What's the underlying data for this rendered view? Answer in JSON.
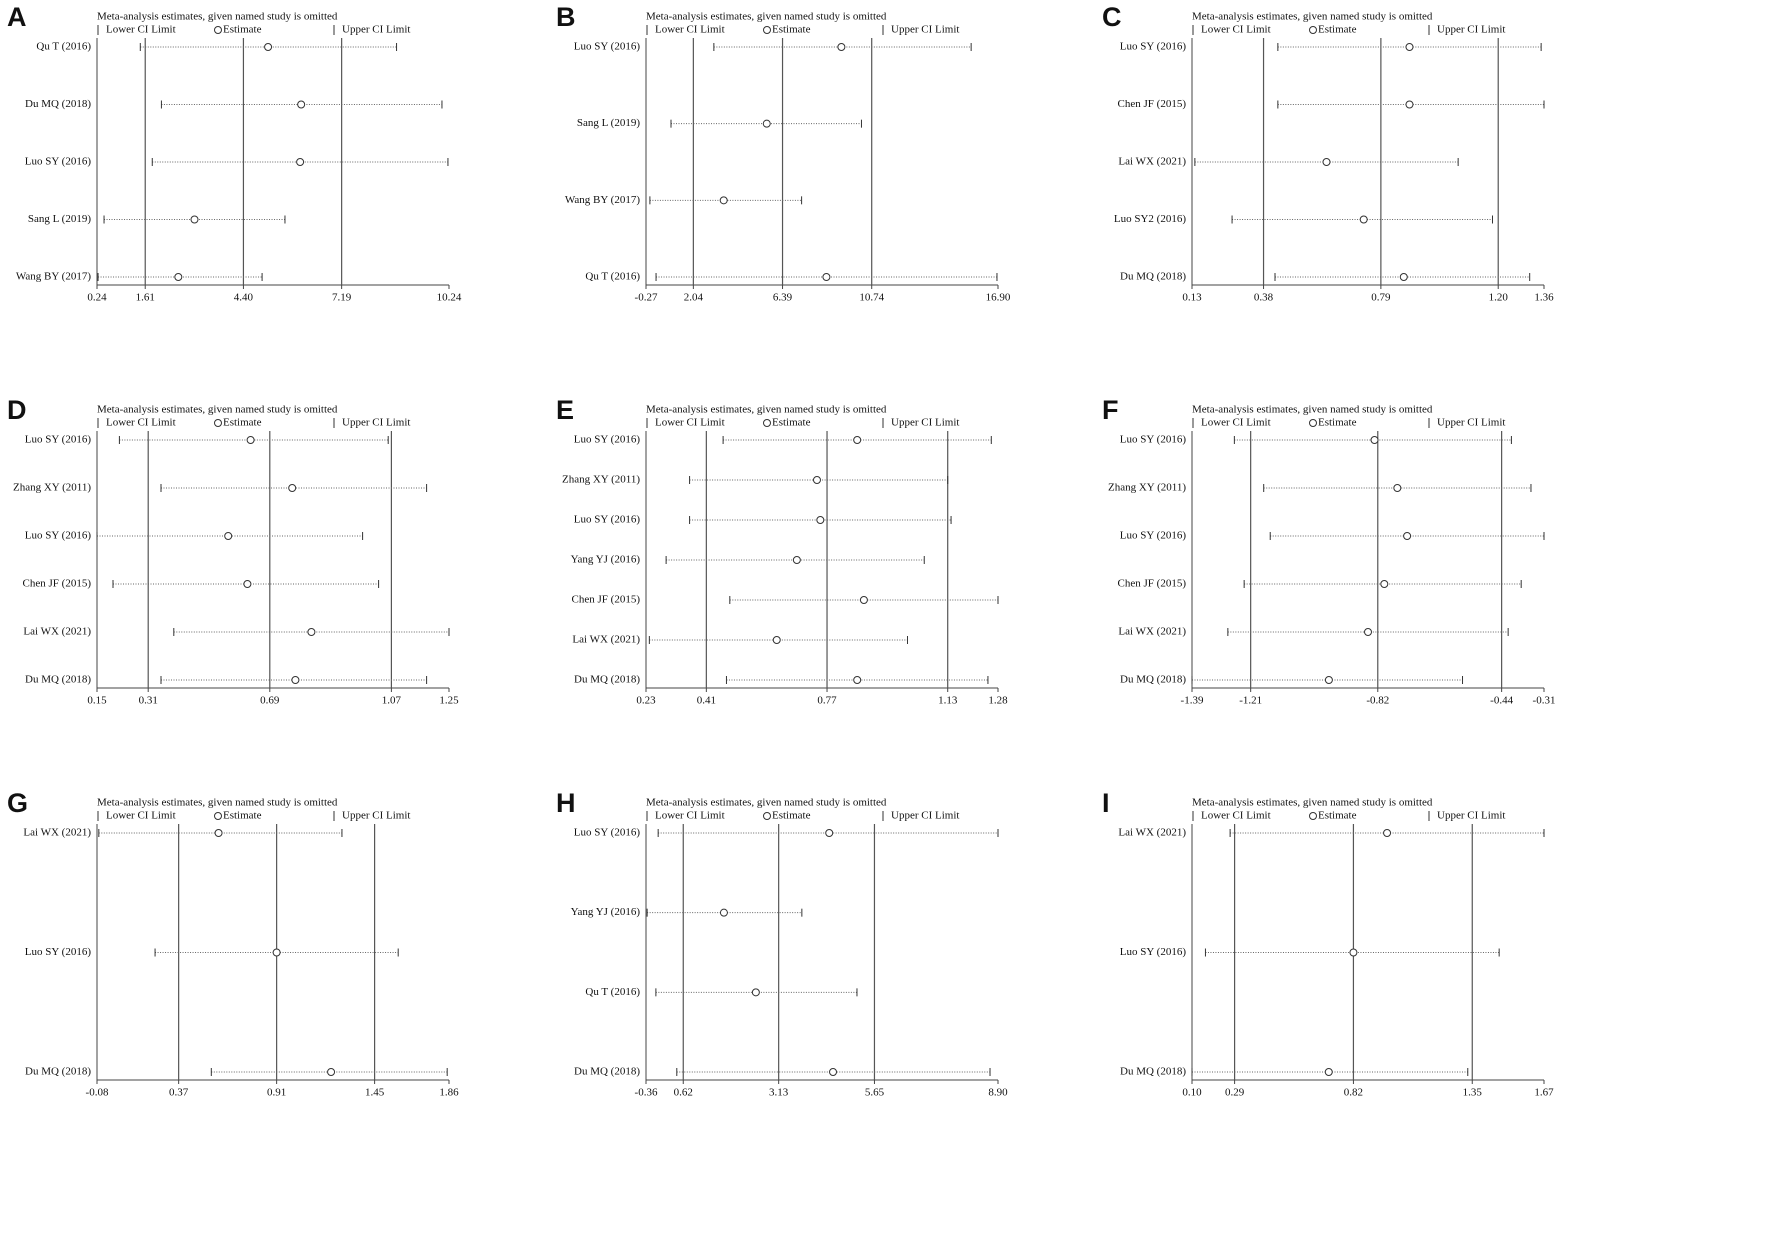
{
  "chart_data": [
    {
      "type": "sensitivity",
      "panel": "A",
      "title": "Meta-analysis estimates, given named study is omitted",
      "categories": [
        "Qu T (2016)",
        "Du MQ (2018)",
        "Luo SY (2016)",
        "Sang L (2019)",
        "Wang BY (2017)"
      ],
      "series": [
        {
          "name": "Lower CI Limit",
          "values": [
            1.47,
            2.07,
            1.81,
            0.44,
            0.27
          ]
        },
        {
          "name": "Estimate",
          "values": [
            5.1,
            6.04,
            6.01,
            3.01,
            2.55
          ]
        },
        {
          "name": "Upper CI Limit",
          "values": [
            8.75,
            10.04,
            10.21,
            5.58,
            4.93
          ]
        }
      ],
      "xlim": [
        0.24,
        10.24
      ],
      "xticks": [
        0.24,
        1.61,
        {
          "value": 4.4,
          "label": "4.40"
        },
        7.19,
        10.24
      ]
    },
    {
      "type": "sensitivity",
      "panel": "B",
      "title": "Meta-analysis estimates, given named study is omitted",
      "categories": [
        "Luo SY (2016)",
        "Sang L (2019)",
        "Wang BY (2017)",
        "Qu T (2016)"
      ],
      "series": [
        {
          "name": "Lower CI Limit",
          "values": [
            3.04,
            0.95,
            -0.08,
            0.22
          ]
        },
        {
          "name": "Estimate",
          "values": [
            9.26,
            5.62,
            3.52,
            8.53
          ]
        },
        {
          "name": "Upper CI Limit",
          "values": [
            15.59,
            10.24,
            7.32,
            16.85
          ]
        }
      ],
      "xlim": [
        -0.27,
        16.9
      ],
      "xticks": [
        -0.27,
        2.04,
        6.39,
        10.74,
        {
          "value": 16.9,
          "label": "16.90"
        }
      ]
    },
    {
      "type": "sensitivity",
      "panel": "C",
      "title": "Meta-analysis estimates, given named study is omitted",
      "categories": [
        "Luo SY (2016)",
        "Chen JF (2015)",
        "Lai WX (2021)",
        "Luo SY2 (2016)",
        "Du MQ (2018)"
      ],
      "series": [
        {
          "name": "Lower CI Limit",
          "values": [
            0.43,
            0.43,
            0.14,
            0.27,
            0.42
          ]
        },
        {
          "name": "Estimate",
          "values": [
            0.89,
            0.89,
            0.6,
            0.73,
            0.87
          ]
        },
        {
          "name": "Upper CI Limit",
          "values": [
            1.35,
            1.36,
            1.06,
            1.18,
            1.31
          ]
        }
      ],
      "xlim": [
        0.13,
        1.36
      ],
      "xticks": [
        0.13,
        0.38,
        0.79,
        {
          "value": 1.2,
          "label": "1.20"
        },
        1.36
      ]
    },
    {
      "type": "sensitivity",
      "panel": "D",
      "title": "Meta-analysis estimates, given named study is omitted",
      "categories": [
        "Luo SY (2016)",
        "Zhang XY (2011)",
        "Luo SY (2016)",
        "Chen JF (2015)",
        "Lai WX (2021)",
        "Du MQ (2018)"
      ],
      "series": [
        {
          "name": "Lower CI Limit",
          "values": [
            0.22,
            0.35,
            0.15,
            0.2,
            0.39,
            0.35
          ]
        },
        {
          "name": "Estimate",
          "values": [
            0.63,
            0.76,
            0.56,
            0.62,
            0.82,
            0.77
          ]
        },
        {
          "name": "Upper CI Limit",
          "values": [
            1.06,
            1.18,
            0.98,
            1.03,
            1.25,
            1.18
          ]
        }
      ],
      "xlim": [
        0.15,
        1.25
      ],
      "xticks": [
        0.15,
        0.31,
        0.69,
        1.07,
        1.25
      ]
    },
    {
      "type": "sensitivity",
      "panel": "E",
      "title": "Meta-analysis estimates, given named study is omitted",
      "categories": [
        "Luo SY (2016)",
        "Zhang XY (2011)",
        "Luo SY (2016)",
        "Yang YJ (2016)",
        "Chen JF (2015)",
        "Lai WX (2021)",
        "Du MQ (2018)"
      ],
      "series": [
        {
          "name": "Lower CI Limit",
          "values": [
            0.46,
            0.36,
            0.36,
            0.29,
            0.48,
            0.24,
            0.47
          ]
        },
        {
          "name": "Estimate",
          "values": [
            0.86,
            0.74,
            0.75,
            0.68,
            0.88,
            0.62,
            0.86
          ]
        },
        {
          "name": "Upper CI Limit",
          "values": [
            1.26,
            1.13,
            1.14,
            1.06,
            1.28,
            1.01,
            1.25
          ]
        }
      ],
      "xlim": [
        0.23,
        1.28
      ],
      "xticks": [
        0.23,
        0.41,
        0.77,
        1.13,
        1.28
      ]
    },
    {
      "type": "sensitivity",
      "panel": "F",
      "title": "Meta-analysis estimates, given named study is omitted",
      "categories": [
        "Luo SY (2016)",
        "Zhang XY (2011)",
        "Luo SY (2016)",
        "Chen JF (2015)",
        "Lai WX (2021)",
        "Du MQ (2018)"
      ],
      "series": [
        {
          "name": "Lower CI Limit",
          "values": [
            -1.26,
            -1.17,
            -1.15,
            -1.23,
            -1.28,
            -1.39
          ]
        },
        {
          "name": "Estimate",
          "values": [
            -0.83,
            -0.76,
            -0.73,
            -0.8,
            -0.85,
            -0.97
          ]
        },
        {
          "name": "Upper CI Limit",
          "values": [
            -0.41,
            -0.35,
            -0.31,
            -0.38,
            -0.42,
            -0.56
          ]
        }
      ],
      "xlim": [
        -1.39,
        -0.31
      ],
      "xticks": [
        -1.39,
        -1.21,
        -0.82,
        -0.44,
        -0.31
      ]
    },
    {
      "type": "sensitivity",
      "panel": "G",
      "title": "Meta-analysis estimates, given named study is omitted",
      "categories": [
        "Lai WX (2021)",
        "Luo SY (2016)",
        "Du MQ (2018)"
      ],
      "series": [
        {
          "name": "Lower CI Limit",
          "values": [
            -0.07,
            0.24,
            0.55
          ]
        },
        {
          "name": "Estimate",
          "values": [
            0.59,
            0.91,
            1.21
          ]
        },
        {
          "name": "Upper CI Limit",
          "values": [
            1.27,
            1.58,
            1.85
          ]
        }
      ],
      "xlim": [
        -0.08,
        1.86
      ],
      "xticks": [
        -0.08,
        0.37,
        0.91,
        1.45,
        1.86
      ]
    },
    {
      "type": "sensitivity",
      "panel": "H",
      "title": "Meta-analysis estimates, given named study is omitted",
      "categories": [
        "Luo SY (2016)",
        "Yang YJ (2016)",
        "Qu T (2016)",
        "Du MQ (2018)"
      ],
      "series": [
        {
          "name": "Lower CI Limit",
          "values": [
            -0.04,
            -0.33,
            -0.1,
            0.45
          ]
        },
        {
          "name": "Estimate",
          "values": [
            4.46,
            1.69,
            2.53,
            4.56
          ]
        },
        {
          "name": "Upper CI Limit",
          "values": [
            8.9,
            3.74,
            5.19,
            8.69
          ]
        }
      ],
      "xlim": [
        -0.36,
        8.9
      ],
      "xticks": [
        -0.36,
        0.62,
        3.13,
        5.65,
        {
          "value": 8.9,
          "label": "8.90"
        }
      ]
    },
    {
      "type": "sensitivity",
      "panel": "I",
      "title": "Meta-analysis estimates, given named study is omitted",
      "categories": [
        "Lai WX (2021)",
        "Luo SY (2016)",
        "Du MQ (2018)"
      ],
      "series": [
        {
          "name": "Lower CI Limit",
          "values": [
            0.27,
            0.16,
            0.1
          ]
        },
        {
          "name": "Estimate",
          "values": [
            0.97,
            0.82,
            0.71
          ]
        },
        {
          "name": "Upper CI Limit",
          "values": [
            1.67,
            1.47,
            1.33
          ]
        }
      ],
      "xlim": [
        0.1,
        1.67
      ],
      "xticks": [
        {
          "value": 0.1,
          "label": "0.10"
        },
        0.29,
        0.82,
        1.35,
        1.67
      ]
    }
  ]
}
